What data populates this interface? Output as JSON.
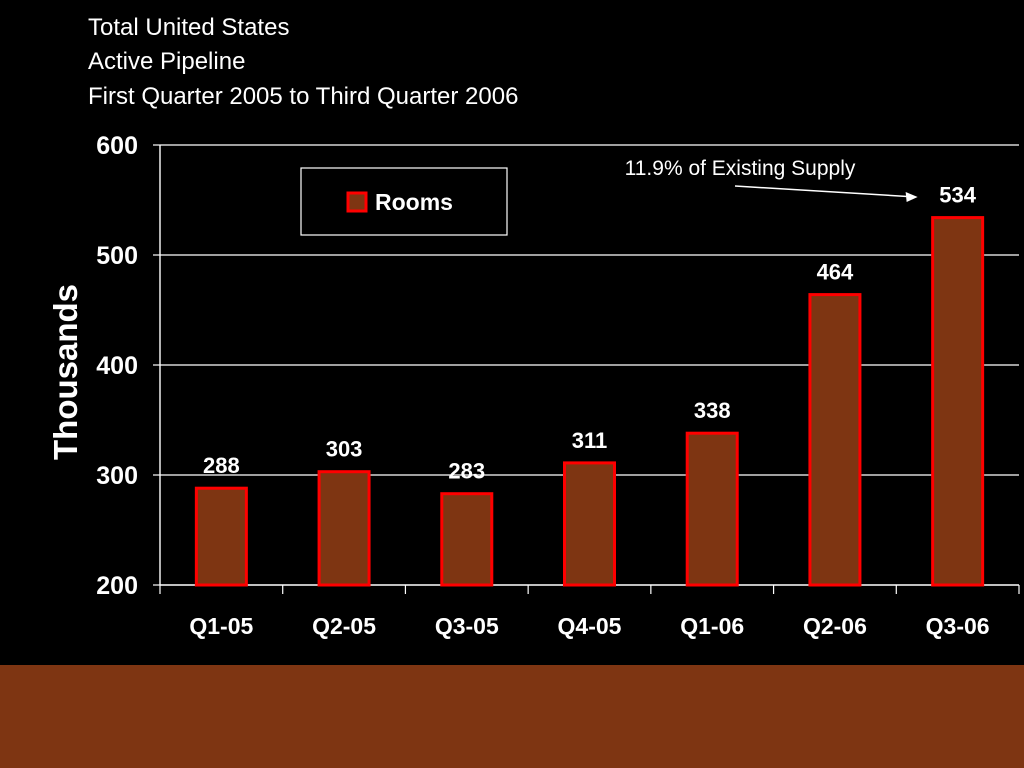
{
  "slide": {
    "title_lines": [
      "Total United States",
      "Active Pipeline",
      "First Quarter 2005 to Third Quarter 2006"
    ],
    "background_color": "#000000",
    "footer_band_color": "#7E3512"
  },
  "chart_data": {
    "type": "bar",
    "title": "",
    "xlabel": "",
    "ylabel": "Thousands",
    "ylim": [
      200,
      600
    ],
    "yticks": [
      200,
      300,
      400,
      500,
      600
    ],
    "categories": [
      "Q1-05",
      "Q2-05",
      "Q3-05",
      "Q4-05",
      "Q1-06",
      "Q2-06",
      "Q3-06"
    ],
    "series": [
      {
        "name": "Rooms",
        "values": [
          288,
          303,
          283,
          311,
          338,
          464,
          534
        ],
        "fill_color": "#7E3512",
        "edge_color": "#FF0000"
      }
    ],
    "data_labels": [
      "288",
      "303",
      "283",
      "311",
      "338",
      "464",
      "534"
    ],
    "legend": {
      "entries": [
        "Rooms"
      ],
      "position": "top-left"
    },
    "annotation": {
      "text": "11.9% of Existing Supply",
      "points_to": "Q3-06"
    },
    "grid": true,
    "gridline_color": "#FFFFFF",
    "text_color": "#FFFFFF"
  }
}
